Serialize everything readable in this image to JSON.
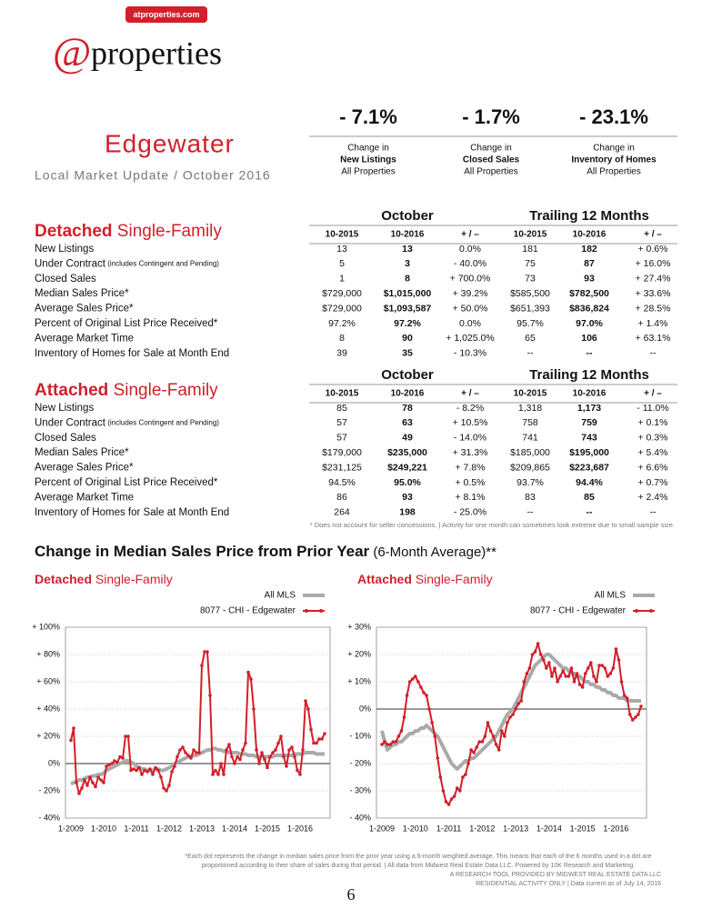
{
  "header": {
    "url": "atproperties.com",
    "logo_at": "@",
    "logo_text": "properties"
  },
  "area": {
    "name": "Edgewater",
    "subtitle": "Local Market Update / October 2016"
  },
  "summary": [
    {
      "value": "- 7.1%",
      "line1": "Change in",
      "line2": "New Listings",
      "line3": "All Properties"
    },
    {
      "value": "- 1.7%",
      "line1": "Change in",
      "line2": "Closed Sales",
      "line3": "All Properties"
    },
    {
      "value": "- 23.1%",
      "line1": "Change in",
      "line2": "Inventory of Homes",
      "line3": "All Properties"
    }
  ],
  "tables": [
    {
      "title": "Detached",
      "title_suffix": " Single-Family",
      "period1": "October",
      "period2": "Trailing 12 Months",
      "columns": [
        "10-2015",
        "10-2016",
        "+ / –",
        "10-2015",
        "10-2016",
        "+ / –"
      ],
      "rows": [
        {
          "label": "New Listings",
          "cells": [
            "13",
            "13",
            "0.0%",
            "181",
            "182",
            "+ 0.6%"
          ]
        },
        {
          "label": "Under Contract",
          "note": " (includes Contingent and Pending)",
          "cells": [
            "5",
            "3",
            "- 40.0%",
            "75",
            "87",
            "+ 16.0%"
          ]
        },
        {
          "label": "Closed Sales",
          "cells": [
            "1",
            "8",
            "+ 700.0%",
            "73",
            "93",
            "+ 27.4%"
          ]
        },
        {
          "label": "Median Sales Price*",
          "cells": [
            "$729,000",
            "$1,015,000",
            "+ 39.2%",
            "$585,500",
            "$782,500",
            "+ 33.6%"
          ]
        },
        {
          "label": "Average Sales Price*",
          "cells": [
            "$729,000",
            "$1,093,587",
            "+ 50.0%",
            "$651,393",
            "$836,824",
            "+ 28.5%"
          ]
        },
        {
          "label": "Percent of Original List Price Received*",
          "cells": [
            "97.2%",
            "97.2%",
            "0.0%",
            "95.7%",
            "97.0%",
            "+ 1.4%"
          ]
        },
        {
          "label": "Average Market Time",
          "cells": [
            "8",
            "90",
            "+ 1,025.0%",
            "65",
            "106",
            "+ 63.1%"
          ]
        },
        {
          "label": "Inventory of Homes for Sale at Month End",
          "cells": [
            "39",
            "35",
            "- 10.3%",
            "--",
            "--",
            "--"
          ]
        }
      ]
    },
    {
      "title": "Attached",
      "title_suffix": " Single-Family",
      "period1": "October",
      "period2": "Trailing 12 Months",
      "columns": [
        "10-2015",
        "10-2016",
        "+ / –",
        "10-2015",
        "10-2016",
        "+ / –"
      ],
      "rows": [
        {
          "label": "New Listings",
          "cells": [
            "85",
            "78",
            "- 8.2%",
            "1,318",
            "1,173",
            "- 11.0%"
          ]
        },
        {
          "label": "Under Contract",
          "note": " (includes Contingent and Pending)",
          "cells": [
            "57",
            "63",
            "+ 10.5%",
            "758",
            "759",
            "+ 0.1%"
          ]
        },
        {
          "label": "Closed Sales",
          "cells": [
            "57",
            "49",
            "- 14.0%",
            "741",
            "743",
            "+ 0.3%"
          ]
        },
        {
          "label": "Median Sales Price*",
          "cells": [
            "$179,000",
            "$235,000",
            "+ 31.3%",
            "$185,000",
            "$195,000",
            "+ 5.4%"
          ]
        },
        {
          "label": "Average Sales Price*",
          "cells": [
            "$231,125",
            "$249,221",
            "+ 7.8%",
            "$209,865",
            "$223,687",
            "+ 6.6%"
          ]
        },
        {
          "label": "Percent of Original List Price Received*",
          "cells": [
            "94.5%",
            "95.0%",
            "+ 0.5%",
            "93.7%",
            "94.4%",
            "+ 0.7%"
          ]
        },
        {
          "label": "Average Market Time",
          "cells": [
            "86",
            "93",
            "+ 8.1%",
            "83",
            "85",
            "+ 2.4%"
          ]
        },
        {
          "label": "Inventory of Homes for Sale at Month End",
          "cells": [
            "264",
            "198",
            "- 25.0%",
            "--",
            "--",
            "--"
          ]
        }
      ]
    }
  ],
  "table_footnote": "* Does not account for seller concessions.  |  Activity for one month can sometimes look extreme due to small sample size.",
  "section": {
    "title": "Change in Median Sales Price from Prior Year",
    "subtitle": " (6-Month Average)**"
  },
  "chart_data": [
    {
      "type": "line",
      "title": "Detached",
      "title_suffix": " Single-Family",
      "categories": [
        "1-2009",
        null,
        null,
        null,
        null,
        null,
        null,
        null,
        null,
        null,
        null,
        null,
        "1-2010",
        null,
        null,
        null,
        null,
        null,
        null,
        null,
        null,
        null,
        null,
        null,
        "1-2011",
        null,
        null,
        null,
        null,
        null,
        null,
        null,
        null,
        null,
        null,
        null,
        "1-2012",
        null,
        null,
        null,
        null,
        null,
        null,
        null,
        null,
        null,
        null,
        null,
        "1-2013",
        null,
        null,
        null,
        null,
        null,
        null,
        null,
        null,
        null,
        null,
        null,
        "1-2014",
        null,
        null,
        null,
        null,
        null,
        null,
        null,
        null,
        null,
        null,
        null,
        "1-2015",
        null,
        null,
        null,
        null,
        null,
        null,
        null,
        null,
        null,
        null,
        null,
        "1-2016",
        null,
        null,
        null,
        null,
        null,
        null,
        null,
        null,
        null
      ],
      "ylim": [
        -40,
        100
      ],
      "yticks": [
        {
          "value": -40,
          "label": "- 40%"
        },
        {
          "value": -20,
          "label": "- 20%"
        },
        {
          "value": 0,
          "label": "0%"
        },
        {
          "value": 20,
          "label": "+ 20%"
        },
        {
          "value": 40,
          "label": "+ 40%"
        },
        {
          "value": 60,
          "label": "+ 60%"
        },
        {
          "value": 80,
          "label": "+ 80%"
        },
        {
          "value": 100,
          "label": "+ 100%"
        }
      ],
      "grid": true,
      "series": [
        {
          "name": "All MLS",
          "color": "#aaaaaa",
          "values": [
            -15,
            -14,
            -13,
            -12,
            -12,
            -11,
            -10,
            -10,
            -9,
            -9,
            -8,
            -8,
            -7,
            -5,
            -4,
            -3,
            -2,
            -1,
            0,
            1,
            2,
            2,
            1,
            0,
            -2,
            -3,
            -4,
            -4,
            -5,
            -5,
            -5,
            -4,
            -4,
            -5,
            -5,
            -4,
            -3,
            -2,
            0,
            1,
            2,
            3,
            4,
            5,
            5,
            6,
            6,
            7,
            8,
            9,
            10,
            10,
            11,
            11,
            10,
            10,
            9,
            9,
            8,
            8,
            8,
            8,
            7,
            7,
            7,
            6,
            6,
            6,
            5,
            5,
            5,
            5,
            5,
            5,
            5,
            6,
            6,
            6,
            6,
            6,
            6,
            6,
            7,
            7,
            7,
            7,
            8,
            8,
            8,
            8,
            7,
            7,
            7,
            7
          ]
        },
        {
          "name": "8077 - CHI - Edgewater",
          "color": "#d21f2b",
          "values": [
            17,
            26,
            -14,
            -22,
            -18,
            -12,
            -16,
            -10,
            -14,
            -17,
            -10,
            -12,
            -14,
            -2,
            -1,
            0,
            2,
            1,
            5,
            4,
            20,
            20,
            -5,
            -4,
            -5,
            -3,
            -8,
            -5,
            -6,
            -4,
            -8,
            -3,
            -5,
            -10,
            -18,
            -20,
            -16,
            -6,
            -2,
            5,
            10,
            12,
            8,
            6,
            4,
            10,
            8,
            8,
            72,
            82,
            82,
            50,
            -8,
            -5,
            -8,
            0,
            -8,
            10,
            14,
            5,
            0,
            5,
            3,
            10,
            15,
            67,
            62,
            40,
            10,
            0,
            8,
            3,
            -3,
            5,
            8,
            10,
            15,
            20,
            5,
            -2,
            10,
            12,
            5,
            -5,
            -8,
            10,
            46,
            40,
            25,
            15,
            15,
            18,
            18,
            22
          ]
        }
      ]
    },
    {
      "type": "line",
      "title": "Attached",
      "title_suffix": " Single-Family",
      "categories": [
        "1-2009",
        null,
        null,
        null,
        null,
        null,
        null,
        null,
        null,
        null,
        null,
        null,
        "1-2010",
        null,
        null,
        null,
        null,
        null,
        null,
        null,
        null,
        null,
        null,
        null,
        "1-2011",
        null,
        null,
        null,
        null,
        null,
        null,
        null,
        null,
        null,
        null,
        null,
        "1-2012",
        null,
        null,
        null,
        null,
        null,
        null,
        null,
        null,
        null,
        null,
        null,
        "1-2013",
        null,
        null,
        null,
        null,
        null,
        null,
        null,
        null,
        null,
        null,
        null,
        "1-2014",
        null,
        null,
        null,
        null,
        null,
        null,
        null,
        null,
        null,
        null,
        null,
        "1-2015",
        null,
        null,
        null,
        null,
        null,
        null,
        null,
        null,
        null,
        null,
        null,
        "1-2016",
        null,
        null,
        null,
        null,
        null,
        null,
        null,
        null,
        null
      ],
      "ylim": [
        -40,
        30
      ],
      "yticks": [
        {
          "value": -40,
          "label": "- 40%"
        },
        {
          "value": -30,
          "label": "- 30%"
        },
        {
          "value": -20,
          "label": "- 20%"
        },
        {
          "value": -10,
          "label": "- 10%"
        },
        {
          "value": 0,
          "label": "0%"
        },
        {
          "value": 10,
          "label": "+ 10%"
        },
        {
          "value": 20,
          "label": "+ 20%"
        },
        {
          "value": 30,
          "label": "+ 30%"
        }
      ],
      "grid": true,
      "series": [
        {
          "name": "All MLS",
          "color": "#aaaaaa",
          "values": [
            -8,
            -12,
            -15,
            -14,
            -13,
            -13,
            -12,
            -12,
            -11,
            -10,
            -9,
            -9,
            -8,
            -8,
            -7,
            -7,
            -6,
            -7,
            -8,
            -9,
            -10,
            -12,
            -14,
            -16,
            -18,
            -20,
            -21,
            -22,
            -21,
            -20,
            -19,
            -19,
            -18,
            -18,
            -17,
            -16,
            -15,
            -14,
            -13,
            -12,
            -11,
            -10,
            -8,
            -6,
            -4,
            -2,
            -1,
            0,
            2,
            4,
            6,
            8,
            10,
            12,
            14,
            16,
            17,
            18,
            19,
            20,
            20,
            19,
            18,
            17,
            16,
            15,
            15,
            14,
            13,
            13,
            12,
            12,
            11,
            10,
            10,
            9,
            9,
            8,
            8,
            7,
            7,
            6,
            6,
            5,
            5,
            4,
            4,
            4,
            3,
            3,
            3,
            3,
            3,
            3
          ]
        },
        {
          "name": "8077 - CHI - Edgewater",
          "color": "#d21f2b",
          "values": [
            -13,
            -12,
            -13,
            -13,
            -12,
            -12,
            -10,
            -8,
            -3,
            5,
            10,
            11,
            12,
            10,
            8,
            6,
            5,
            0,
            -5,
            -10,
            -18,
            -25,
            -30,
            -34,
            -35,
            -33,
            -32,
            -29,
            -30,
            -25,
            -24,
            -20,
            -15,
            -16,
            -14,
            -12,
            -12,
            -10,
            -5,
            -8,
            -10,
            -13,
            -15,
            -8,
            -10,
            -5,
            -3,
            -2,
            0,
            2,
            3,
            10,
            13,
            15,
            20,
            21,
            24,
            20,
            18,
            15,
            17,
            12,
            15,
            10,
            12,
            14,
            12,
            12,
            15,
            10,
            13,
            9,
            8,
            13,
            15,
            17,
            12,
            10,
            16,
            16,
            15,
            12,
            13,
            15,
            22,
            18,
            10,
            5,
            4,
            -2,
            -4,
            -3,
            -2,
            1
          ]
        }
      ]
    }
  ],
  "footer": {
    "lines": [
      "*Each dot represents the change in median sales price from the prior year using a 6-month weighted average. This means that each of the 6 months used in a dot are",
      "proportioned according to their share of sales during that period.  |  All data from Midwest Real Estate Data LLC. Powered by 10K Research and Marketing."
    ],
    "right_lines": [
      "A RESEARCH TOOL PROVIDED BY MIDWEST REAL ESTATE DATA LLC",
      "RESIDENTIAL ACTIVITY ONLY  |  Data current as of July 14, 2016"
    ],
    "page": "6"
  }
}
